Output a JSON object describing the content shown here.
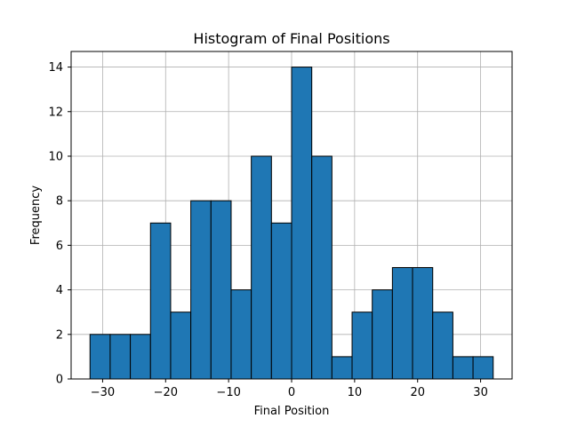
{
  "chart_data": {
    "type": "bar",
    "title": "Histogram of Final Positions",
    "xlabel": "Final Position",
    "ylabel": "Frequency",
    "xlim": [
      -35,
      35
    ],
    "ylim": [
      0,
      14.7
    ],
    "xticks": [
      -30,
      -20,
      -10,
      0,
      10,
      20,
      30
    ],
    "xtick_labels": [
      "−30",
      "−20",
      "−10",
      "0",
      "10",
      "20",
      "30"
    ],
    "yticks": [
      0,
      2,
      4,
      6,
      8,
      10,
      12,
      14
    ],
    "ytick_labels": [
      "0",
      "2",
      "4",
      "6",
      "8",
      "10",
      "12",
      "14"
    ],
    "grid": true,
    "bar_color": "#1f77b4",
    "edge_color": "#000000",
    "bin_edges": [
      -32,
      -28.8,
      -25.6,
      -22.4,
      -19.2,
      -16,
      -12.8,
      -9.6,
      -6.4,
      -3.2,
      0,
      3.2,
      6.4,
      9.6,
      12.8,
      16,
      19.2,
      22.4,
      25.6,
      28.8,
      32
    ],
    "values": [
      2,
      2,
      2,
      7,
      3,
      8,
      8,
      4,
      10,
      7,
      14,
      10,
      1,
      3,
      4,
      5,
      5,
      3,
      1,
      1
    ]
  }
}
